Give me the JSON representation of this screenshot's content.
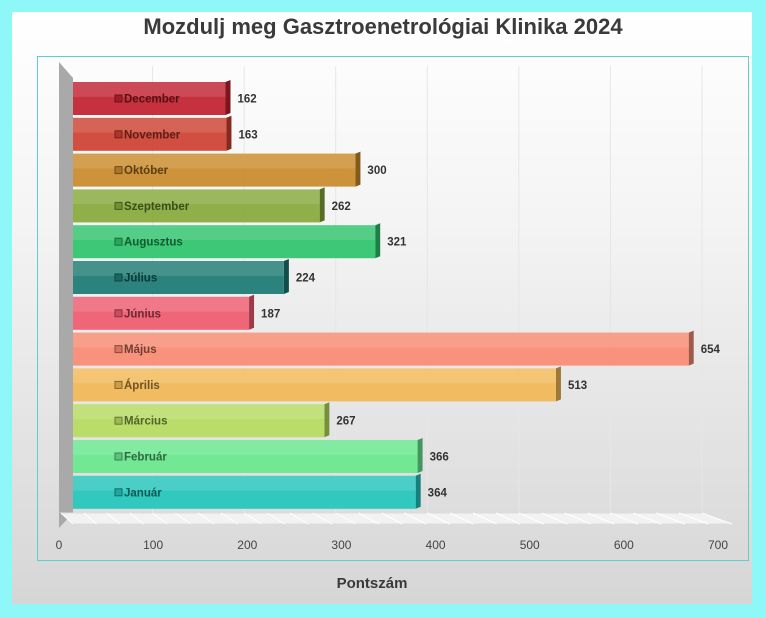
{
  "chart_data": {
    "type": "bar",
    "orientation": "horizontal",
    "title": "Mozdulj meg Gasztroenetrológiai Klinika 2024",
    "xlabel": "Pontszám",
    "ylabel": "",
    "xlim": [
      0,
      700
    ],
    "xticks": [
      "0",
      "100",
      "200",
      "300",
      "400",
      "500",
      "600",
      "700"
    ],
    "grid": true,
    "legend": "inside-bars",
    "categories": [
      "December",
      "November",
      "Október",
      "Szeptember",
      "Augusztus",
      "Július",
      "Június",
      "Május",
      "Április",
      "Március",
      "Február",
      "Január"
    ],
    "values": [
      162,
      163,
      300,
      262,
      321,
      224,
      187,
      654,
      513,
      267,
      366,
      364
    ],
    "value_labels": [
      "162",
      "163",
      "300",
      "262",
      "321",
      "224",
      "187",
      "654",
      "513",
      "267",
      "366",
      "364"
    ],
    "colors": [
      "#c0202e",
      "#cc4030",
      "#c98a2a",
      "#86a83a",
      "#2ec46c",
      "#1b7a74",
      "#ee5a6e",
      "#f88a72",
      "#f2b856",
      "#b6dc60",
      "#68e88e",
      "#22c6bc"
    ]
  }
}
